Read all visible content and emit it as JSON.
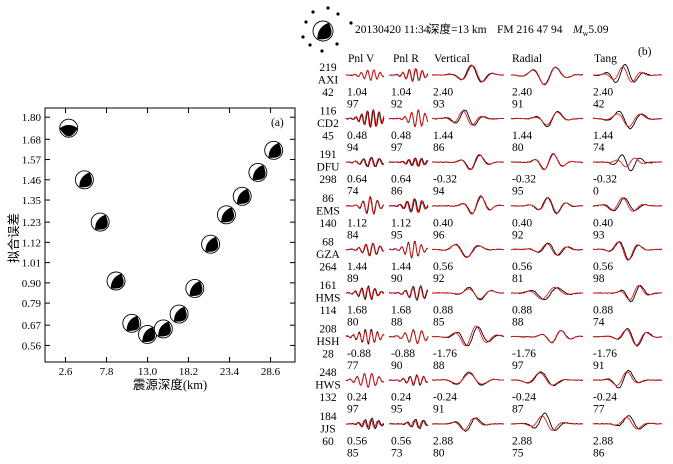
{
  "chart_data": [
    {
      "type": "scatter",
      "panel_label": "(a)",
      "xlabel": "震源深度(km)",
      "ylabel": "拟合误差",
      "xticks": [
        "2.6",
        "7.8",
        "13.0",
        "18.2",
        "23.4",
        "28.6"
      ],
      "yticks": [
        "1.80",
        "1.68",
        "1.57",
        "1.46",
        "1.35",
        "1.23",
        "1.12",
        "1.01",
        "0.90",
        "0.79",
        "0.67",
        "0.56"
      ],
      "xlim": [
        0,
        31.7
      ],
      "ylim": [
        0.47,
        1.85
      ],
      "grid": false,
      "marker_icon": "beach-ball-icon",
      "x": [
        3,
        5,
        7,
        9,
        11,
        13,
        15,
        17,
        19,
        21,
        23,
        25,
        27,
        29
      ],
      "y": [
        1.74,
        1.46,
        1.23,
        0.91,
        0.68,
        0.62,
        0.65,
        0.73,
        0.87,
        1.11,
        1.27,
        1.37,
        1.5,
        1.62
      ],
      "colors": {
        "marker": "#000000"
      }
    },
    {
      "type": "line",
      "panel_label": "(b)",
      "header_icon": "station-map-icon",
      "header": {
        "datetime": "20130420 11:34",
        "depth": "深度=13 km",
        "fm": "FM 216 47 94",
        "mw_symbol": "M",
        "mw_sub": "w",
        "mw_value": "5.09"
      },
      "columns": [
        "Pnl V",
        "Pnl R",
        "Vertical",
        "Radial",
        "Tang"
      ],
      "colors": {
        "observed": "#000000",
        "synthetic": "#e31a1c"
      },
      "stations": [
        {
          "distance": "219",
          "name": "AXI",
          "azimuth": "42",
          "cells": [
            {
              "shift": "1.04",
              "cc": "97"
            },
            {
              "shift": "1.04",
              "cc": "92"
            },
            {
              "shift": "2.40",
              "cc": "93"
            },
            {
              "shift": "2.40",
              "cc": "91"
            },
            {
              "shift": "2.40",
              "cc": "42"
            }
          ]
        },
        {
          "distance": "116",
          "name": "CD2",
          "azimuth": "45",
          "cells": [
            {
              "shift": "0.48",
              "cc": "94"
            },
            {
              "shift": "0.48",
              "cc": "97"
            },
            {
              "shift": "1.44",
              "cc": "86"
            },
            {
              "shift": "1.44",
              "cc": "80"
            },
            {
              "shift": "1.44",
              "cc": "74"
            }
          ]
        },
        {
          "distance": "191",
          "name": "DFU",
          "azimuth": "298",
          "cells": [
            {
              "shift": "0.64",
              "cc": "74"
            },
            {
              "shift": "0.64",
              "cc": "86"
            },
            {
              "shift": "-0.32",
              "cc": "94"
            },
            {
              "shift": "-0.32",
              "cc": "95"
            },
            {
              "shift": "-0.32",
              "cc": "0"
            }
          ]
        },
        {
          "distance": "86",
          "name": "EMS",
          "azimuth": "140",
          "cells": [
            {
              "shift": "1.12",
              "cc": "84"
            },
            {
              "shift": "1.12",
              "cc": "95"
            },
            {
              "shift": "0.40",
              "cc": "96"
            },
            {
              "shift": "0.40",
              "cc": "92"
            },
            {
              "shift": "0.40",
              "cc": "93"
            }
          ]
        },
        {
          "distance": "68",
          "name": "GZA",
          "azimuth": "264",
          "cells": [
            {
              "shift": "1.44",
              "cc": "89"
            },
            {
              "shift": "1.44",
              "cc": "90"
            },
            {
              "shift": "0.56",
              "cc": "92"
            },
            {
              "shift": "0.56",
              "cc": "81"
            },
            {
              "shift": "0.56",
              "cc": "98"
            }
          ]
        },
        {
          "distance": "161",
          "name": "HMS",
          "azimuth": "114",
          "cells": [
            {
              "shift": "1.68",
              "cc": "80"
            },
            {
              "shift": "1.68",
              "cc": "88"
            },
            {
              "shift": "0.88",
              "cc": "85"
            },
            {
              "shift": "0.88",
              "cc": "88"
            },
            {
              "shift": "0.88",
              "cc": "74"
            }
          ]
        },
        {
          "distance": "208",
          "name": "HSH",
          "azimuth": "28",
          "cells": [
            {
              "shift": "-0.88",
              "cc": "77"
            },
            {
              "shift": "-0.88",
              "cc": "90"
            },
            {
              "shift": "-1.76",
              "cc": "88"
            },
            {
              "shift": "-1.76",
              "cc": "97"
            },
            {
              "shift": "-1.76",
              "cc": "91"
            }
          ]
        },
        {
          "distance": "248",
          "name": "HWS",
          "azimuth": "132",
          "cells": [
            {
              "shift": "0.24",
              "cc": "97"
            },
            {
              "shift": "0.24",
              "cc": "95"
            },
            {
              "shift": "-0.24",
              "cc": "91"
            },
            {
              "shift": "-0.24",
              "cc": "87"
            },
            {
              "shift": "-0.24",
              "cc": "77"
            }
          ]
        },
        {
          "distance": "184",
          "name": "JJS",
          "azimuth": "60",
          "cells": [
            {
              "shift": "0.56",
              "cc": "85"
            },
            {
              "shift": "0.56",
              "cc": "73"
            },
            {
              "shift": "2.88",
              "cc": "80"
            },
            {
              "shift": "2.88",
              "cc": "75"
            },
            {
              "shift": "2.88",
              "cc": "86"
            }
          ]
        }
      ]
    }
  ]
}
